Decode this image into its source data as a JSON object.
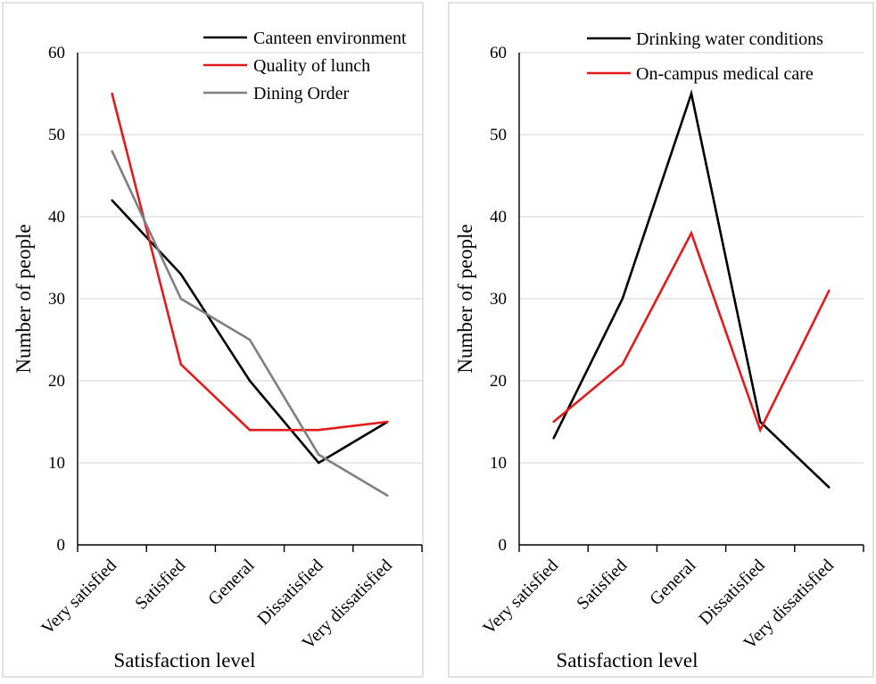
{
  "chart_data": [
    {
      "type": "line",
      "categories": [
        "Very satisfied",
        "Satisfied",
        "General",
        "Dissatisfied",
        "Very dissatisfied"
      ],
      "series": [
        {
          "name": "Canteen environment",
          "values": [
            42,
            33,
            20,
            10,
            15
          ],
          "color": "#000000"
        },
        {
          "name": "Quality of lunch",
          "values": [
            55,
            22,
            14,
            14,
            15
          ],
          "color": "#e31a1c"
        },
        {
          "name": "Dining Order",
          "values": [
            48,
            30,
            25,
            11,
            6
          ],
          "color": "#7f7f7f"
        }
      ],
      "xlabel": "Satisfaction level",
      "ylabel": "Number of people",
      "ylim": [
        0,
        60
      ],
      "yticks": [
        0,
        10,
        20,
        30,
        40,
        50,
        60
      ],
      "grid": "horizontal",
      "legend": "top-right"
    },
    {
      "type": "line",
      "categories": [
        "Very satisfied",
        "Satisfied",
        "General",
        "Dissatisfied",
        "Very dissatisfied"
      ],
      "series": [
        {
          "name": "Drinking water conditions",
          "values": [
            13,
            30,
            55,
            15,
            7
          ],
          "color": "#000000"
        },
        {
          "name": "On-campus medical care",
          "values": [
            15,
            22,
            38,
            14,
            31
          ],
          "color": "#e31a1c"
        }
      ],
      "xlabel": "Satisfaction level",
      "ylabel": "Number of people",
      "ylim": [
        0,
        60
      ],
      "yticks": [
        0,
        10,
        20,
        30,
        40,
        50,
        60
      ],
      "grid": "horizontal",
      "legend": "top-right"
    }
  ]
}
